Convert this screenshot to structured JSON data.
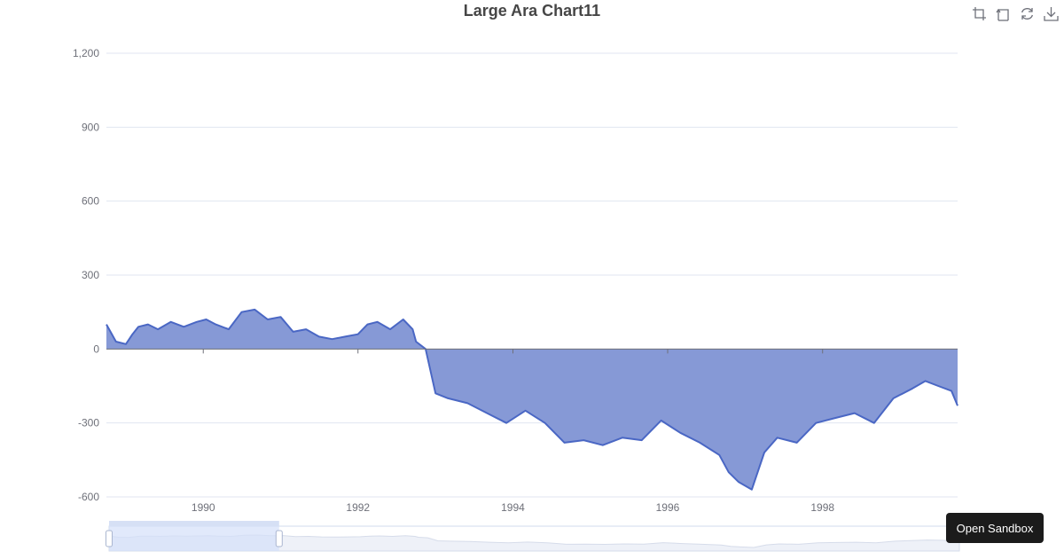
{
  "title": "Large Ara Chart11",
  "toolbox": {
    "icons": [
      "zoom-select-icon",
      "zoom-reset-icon",
      "restore-icon",
      "download-icon"
    ]
  },
  "sandbox_button": {
    "label": "Open Sandbox"
  },
  "colors": {
    "area_fill": "#8699d6",
    "line": "#4a67c4",
    "grid": "#e0e6f1",
    "axis": "#6e7079",
    "title": "#464646",
    "slider_fill": "#d4e0fa",
    "slider_border": "#d2dbee"
  },
  "datazoom": {
    "start_fraction": 0.0,
    "end_fraction": 0.2
  },
  "chart_data": {
    "type": "area",
    "title": "Large Ara Chart11",
    "xlabel": "",
    "ylabel": "",
    "xlim": [
      "1988-10-01",
      "1999-09-30"
    ],
    "ylim": [
      -600,
      1200
    ],
    "yticks": [
      -600,
      -300,
      0,
      300,
      600,
      900,
      1200
    ],
    "ytick_labels": [
      "-600",
      "-300",
      "0",
      "300",
      "600",
      "900",
      "1,200"
    ],
    "xticks": [
      "1990",
      "1992",
      "1994",
      "1996",
      "1998"
    ],
    "grid": true,
    "x": [
      "1988-10-01",
      "1988-11-15",
      "1989-01-01",
      "1989-02-01",
      "1989-03-01",
      "1989-04-15",
      "1989-06-01",
      "1989-08-01",
      "1989-10-01",
      "1989-12-01",
      "1990-01-15",
      "1990-03-01",
      "1990-05-01",
      "1990-07-01",
      "1990-09-01",
      "1990-11-01",
      "1991-01-01",
      "1991-03-01",
      "1991-05-01",
      "1991-07-01",
      "1991-09-01",
      "1991-11-01",
      "1992-01-01",
      "1992-02-15",
      "1992-04-01",
      "1992-06-01",
      "1992-08-01",
      "1992-09-15",
      "1992-10-01",
      "1992-11-15",
      "1993-01-01",
      "1993-03-01",
      "1993-06-01",
      "1993-09-01",
      "1993-12-01",
      "1994-03-01",
      "1994-06-01",
      "1994-09-01",
      "1994-12-01",
      "1995-03-01",
      "1995-06-01",
      "1995-09-01",
      "1995-12-01",
      "1996-03-01",
      "1996-06-01",
      "1996-09-01",
      "1996-10-15",
      "1996-12-01",
      "1997-02-01",
      "1997-04-01",
      "1997-06-01",
      "1997-09-01",
      "1997-12-01",
      "1998-03-01",
      "1998-06-01",
      "1998-09-01",
      "1998-12-01",
      "1999-03-01",
      "1999-05-01",
      "1999-07-01",
      "1999-09-01",
      "1999-09-30"
    ],
    "series": [
      {
        "values": [
          100,
          30,
          20,
          60,
          90,
          100,
          80,
          110,
          90,
          110,
          120,
          100,
          80,
          150,
          160,
          120,
          130,
          70,
          80,
          50,
          40,
          50,
          60,
          100,
          110,
          80,
          120,
          80,
          30,
          0,
          -180,
          -200,
          -220,
          -260,
          -300,
          -250,
          -300,
          -380,
          -370,
          -390,
          -360,
          -370,
          -290,
          -340,
          -380,
          -430,
          -500,
          -540,
          -570,
          -420,
          -360,
          -380,
          -300,
          -280,
          -260,
          -300,
          -200,
          -160,
          -130,
          -150,
          -170,
          -230
        ]
      }
    ]
  }
}
